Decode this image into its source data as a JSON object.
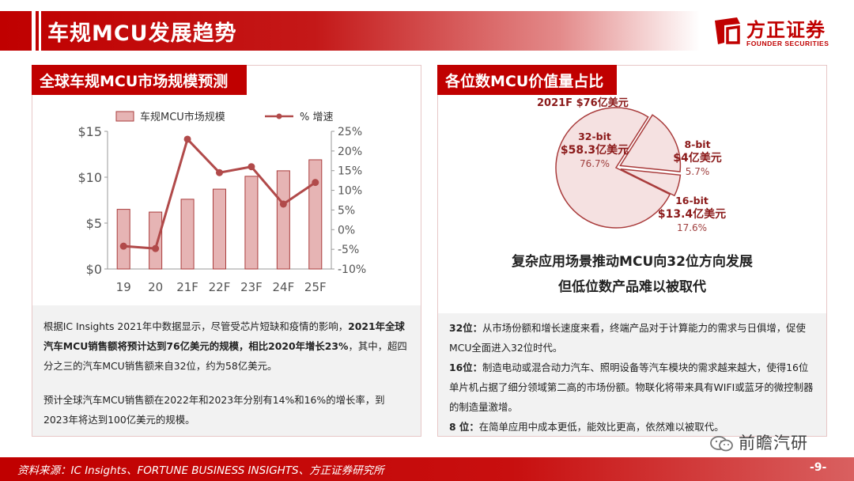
{
  "page": {
    "title": "车规MCU发展趋势",
    "logo_cn": "方正证券",
    "logo_en": "FOUNDER SECURITIES",
    "source": "资料来源：IC Insights、FORTUNE BUSINESS INSIGHTS、方正证券研究所",
    "page_number": "-9-",
    "watermark": "前瞻汽研"
  },
  "left_panel": {
    "header": "全球车规MCU市场规模预测",
    "para1_a": "根据IC Insights 2021年中数据显示，尽管受芯片短缺和疫情的影响，",
    "para1_b": "2021年全球汽车MCU销售额将预计达到76亿美元的规模，相比2020年增长23%",
    "para1_c": "，其中，超四分之三的汽车MCU销售额来自32位，约为58亿美元。",
    "para2": "预计全球汽车MCU销售额在2022年和2023年分别有14%和16%的增长率，到2023年将达到100亿美元的规模。"
  },
  "right_panel": {
    "header": "各位数MCU价值量占比",
    "subtitle_line1": "复杂应用场景推动MCU向32位方向发展",
    "subtitle_line2": "但低位数产品难以被取代",
    "note32_label": "32位：",
    "note32_text": "从市场份额和增长速度来看，终端产品对于计算能力的需求与日俱增，促使MCU全面进入32位时代。",
    "note16_label": "16位：",
    "note16_text": "制造电动或混合动力汽车、照明设备等汽车模块的需求越来越大，使得16位单片机占据了细分领域第二高的市场份额。物联化将带来具有WIFI或蓝牙的微控制器的制造量激增。",
    "note8_label": "8 位：",
    "note8_text": "在简单应用中成本更低，能效比更高，依然难以被取代。"
  },
  "chart_data": [
    {
      "type": "bar+line",
      "categories": [
        "19",
        "20",
        "21F",
        "22F",
        "23F",
        "24F",
        "25F"
      ],
      "series": [
        {
          "name": "车规MCU市场规模",
          "type": "bar",
          "axis": "left",
          "values": [
            6.5,
            6.2,
            7.6,
            8.7,
            10.1,
            10.7,
            11.9
          ]
        },
        {
          "name": "% 增速",
          "type": "line",
          "axis": "right",
          "values": [
            -4.2,
            -4.8,
            23.0,
            14.5,
            16.0,
            6.5,
            12.0
          ]
        }
      ],
      "y_left": {
        "min": 0,
        "max": 15,
        "ticks": [
          0,
          5,
          10,
          15
        ],
        "tick_labels": [
          "$0",
          "$5",
          "$10",
          "$15"
        ]
      },
      "y_right": {
        "min": -10,
        "max": 25,
        "ticks": [
          -10,
          -5,
          0,
          5,
          10,
          15,
          20,
          25
        ],
        "tick_labels": [
          "-10%",
          "-5%",
          "0%",
          "5%",
          "10%",
          "15%",
          "20%",
          "25%"
        ]
      },
      "legend": "top",
      "colors": {
        "bar_fill": "#e6b4b4",
        "bar_stroke": "#a93c3c",
        "line": "#b14a4a"
      }
    },
    {
      "type": "pie",
      "title": "2021F  $76亿美元",
      "slices": [
        {
          "name": "32-bit",
          "value_label": "$58.3亿美元",
          "value": 58.3,
          "percent": 76.7,
          "percent_label": "76.7%"
        },
        {
          "name": "8-bit",
          "value_label": "$4亿美元",
          "value": 4,
          "percent": 5.7,
          "percent_label": "5.7%"
        },
        {
          "name": "16-bit",
          "value_label": "$13.4亿美元",
          "value": 13.4,
          "percent": 17.6,
          "percent_label": "17.6%"
        }
      ],
      "colors": {
        "fill": "#f5e1e1",
        "stroke": "#a93c3c"
      }
    }
  ]
}
